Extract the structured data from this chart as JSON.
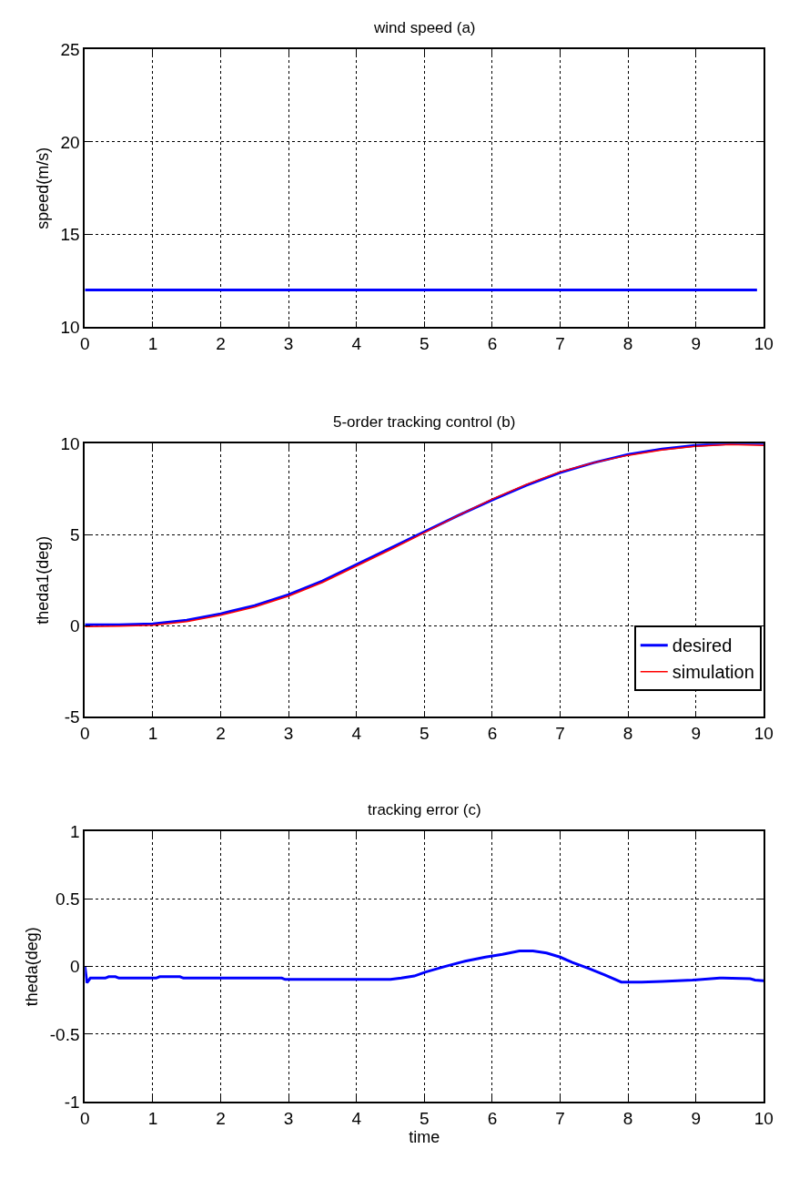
{
  "chart_data": [
    {
      "type": "line",
      "title": "wind speed (a)",
      "ylabel": "speed(m/s)",
      "xlim": [
        0,
        10
      ],
      "ylim": [
        10,
        25
      ],
      "xticks": [
        0,
        1,
        2,
        3,
        4,
        5,
        6,
        7,
        8,
        9,
        10
      ],
      "yticks": [
        10,
        15,
        20,
        25
      ],
      "grid": true,
      "legend": false,
      "series": [
        {
          "color": "#0000ff",
          "x": [
            0,
            9.9
          ],
          "values": [
            12,
            12
          ]
        }
      ]
    },
    {
      "type": "line",
      "title": "5-order tracking control (b)",
      "ylabel": "theda1(deg)",
      "xlim": [
        0,
        10
      ],
      "ylim": [
        -5,
        10
      ],
      "xticks": [
        0,
        1,
        2,
        3,
        4,
        5,
        6,
        7,
        8,
        9,
        10
      ],
      "yticks": [
        -5,
        0,
        5,
        10
      ],
      "grid": true,
      "legend": "bottom right",
      "series": [
        {
          "name": "desired",
          "color": "#0000ff",
          "x": [
            0,
            0.5,
            1,
            1.5,
            2,
            2.5,
            3,
            3.5,
            4,
            4.5,
            5,
            5.5,
            6,
            6.5,
            7,
            7.5,
            8,
            8.5,
            9,
            9.5,
            10
          ],
          "values": [
            0.05,
            0.05,
            0.1,
            0.3,
            0.65,
            1.1,
            1.7,
            2.45,
            3.35,
            4.25,
            5.15,
            6.05,
            6.9,
            7.7,
            8.4,
            8.95,
            9.4,
            9.7,
            9.9,
            10,
            10
          ]
        },
        {
          "name": "simulation",
          "color": "#ff0000",
          "x": [
            0,
            0.5,
            1,
            1.5,
            2,
            2.5,
            3,
            3.5,
            4,
            4.5,
            5,
            5.5,
            6,
            6.5,
            7,
            7.5,
            8,
            8.5,
            9,
            9.5,
            10
          ],
          "values": [
            -0.05,
            -0.03,
            0.02,
            0.22,
            0.57,
            1.02,
            1.62,
            2.37,
            3.27,
            4.17,
            5.1,
            6.05,
            6.95,
            7.75,
            8.45,
            8.95,
            9.35,
            9.65,
            9.85,
            9.95,
            9.9
          ]
        }
      ]
    },
    {
      "type": "line",
      "title": "tracking error (c)",
      "xlabel": "time",
      "ylabel": "theda(deg)",
      "xlim": [
        0,
        10
      ],
      "ylim": [
        -1,
        1
      ],
      "xticks": [
        0,
        1,
        2,
        3,
        4,
        5,
        6,
        7,
        8,
        9,
        10
      ],
      "yticks": [
        -1,
        -0.5,
        0,
        0.5,
        1
      ],
      "grid": true,
      "legend": false,
      "series": [
        {
          "color": "#0000ff",
          "x": [
            0,
            0.03,
            0.08,
            0.3,
            0.35,
            0.45,
            0.5,
            1.05,
            1.1,
            1.4,
            1.45,
            2.9,
            2.95,
            4.1,
            4.15,
            4.5,
            4.66,
            4.85,
            5.02,
            5.3,
            5.6,
            5.9,
            6.15,
            6.4,
            6.6,
            6.8,
            7.0,
            7.18,
            7.4,
            7.65,
            7.9,
            8.2,
            8.5,
            8.95,
            9.35,
            9.4,
            9.8,
            9.87,
            10
          ],
          "values": [
            0,
            -0.12,
            -0.085,
            -0.085,
            -0.075,
            -0.075,
            -0.085,
            -0.085,
            -0.075,
            -0.075,
            -0.085,
            -0.085,
            -0.095,
            -0.095,
            -0.095,
            -0.095,
            -0.085,
            -0.07,
            -0.04,
            0,
            0.04,
            0.07,
            0.09,
            0.115,
            0.115,
            0.1,
            0.07,
            0.03,
            -0.01,
            -0.06,
            -0.115,
            -0.115,
            -0.11,
            -0.1,
            -0.085,
            -0.085,
            -0.09,
            -0.1,
            -0.105
          ]
        }
      ]
    }
  ]
}
